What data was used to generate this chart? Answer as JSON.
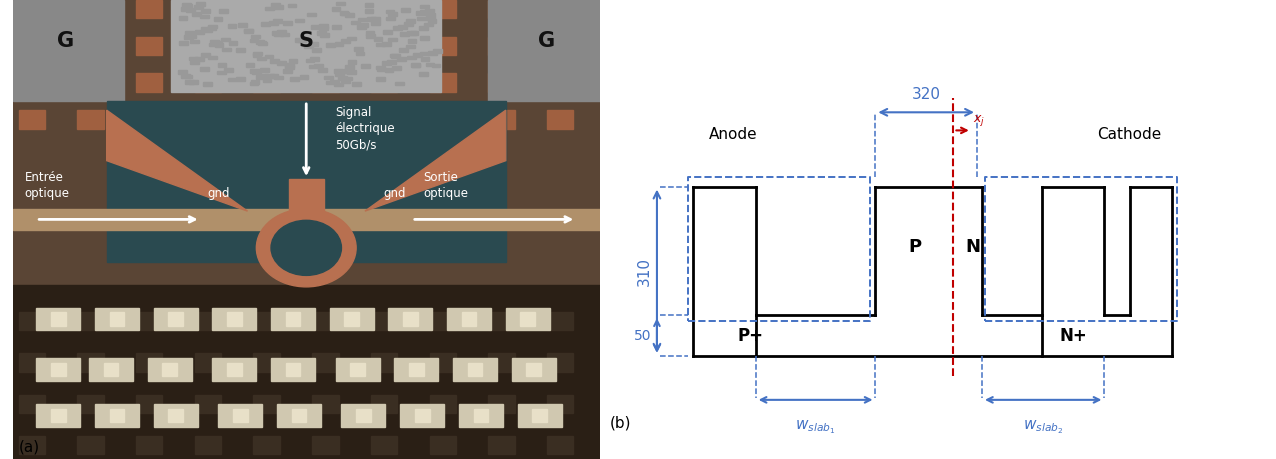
{
  "fig_width": 12.76,
  "fig_height": 4.59,
  "label_a": "(a)",
  "label_b": "(b)",
  "black": "#000000",
  "blue": "#4472C4",
  "red": "#C00000",
  "text_Anode": "Anode",
  "text_Cathode": "Cathode",
  "text_P": "P",
  "text_N": "N",
  "text_Pplus": "P+",
  "text_Nplus": "N+",
  "text_320": "320",
  "text_310": "310",
  "text_50": "50",
  "text_xj": "$x_j$",
  "text_wslab1": "$w_{slab_1}$",
  "text_wslab2": "$w_{slab_2}$",
  "text_G_left": "G",
  "text_S": "S",
  "text_G_right": "G",
  "text_entree": "Entrée\noptique",
  "text_sortie": "Sortie\noptique",
  "text_signal": "Signal\nélectrique\n50Gb/s",
  "text_gnd_left": "gnd",
  "text_gnd_right": "gnd"
}
